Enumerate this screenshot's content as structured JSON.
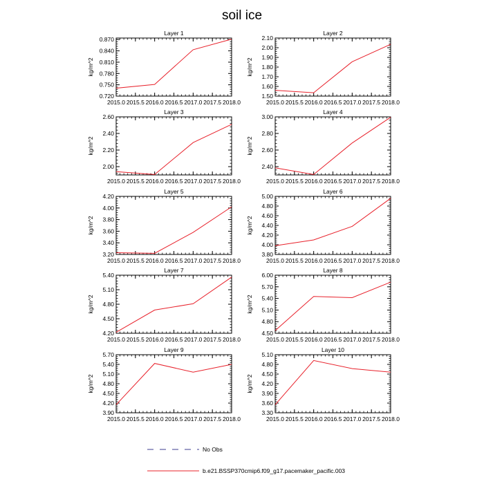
{
  "figure": {
    "title": "soil ice",
    "legend": [
      {
        "label": "No Obs",
        "style": "dashed",
        "color": "#3b3b8f"
      },
      {
        "label": "b.e21.BSSP370cmip6.f09_g17.pacemaker_pacific.003",
        "style": "solid",
        "color": "#e8202a"
      }
    ]
  },
  "chart_data": [
    {
      "type": "line",
      "title": "Layer 1",
      "ylabel": "kg/m^2",
      "x": [
        2015,
        2016,
        2017,
        2018
      ],
      "series": [
        {
          "name": "b.e21.BSSP370cmip6.f09_g17.pacemaker_pacific.003",
          "values": [
            0.741,
            0.751,
            0.843,
            0.871
          ]
        }
      ],
      "xlim": [
        2015,
        2018
      ],
      "xticks": [
        "2015.0",
        "2015.5",
        "2016.0",
        "2016.5",
        "2017.0",
        "2017.5",
        "2018.0"
      ],
      "ylim": [
        0.72,
        0.874
      ],
      "yticks": [
        "0.720",
        "0.750",
        "0.780",
        "0.810",
        "0.840",
        "0.870"
      ],
      "grid": false
    },
    {
      "type": "line",
      "title": "Layer 2",
      "ylabel": "kg/m^2",
      "x": [
        2015,
        2016,
        2017,
        2018
      ],
      "series": [
        {
          "name": "b.e21.BSSP370cmip6.f09_g17.pacemaker_pacific.003",
          "values": [
            1.56,
            1.535,
            1.855,
            2.035
          ]
        }
      ],
      "xlim": [
        2015,
        2018
      ],
      "xticks": [
        "2015.0",
        "2015.5",
        "2016.0",
        "2016.5",
        "2017.0",
        "2017.5",
        "2018.0"
      ],
      "ylim": [
        1.5,
        2.1
      ],
      "yticks": [
        "1.50",
        "1.60",
        "1.70",
        "1.80",
        "1.90",
        "2.00",
        "2.10"
      ],
      "grid": false
    },
    {
      "type": "line",
      "title": "Layer 3",
      "ylabel": "kg/m^2",
      "x": [
        2015,
        2016,
        2017,
        2018
      ],
      "series": [
        {
          "name": "b.e21.BSSP370cmip6.f09_g17.pacemaker_pacific.003",
          "values": [
            1.94,
            1.905,
            2.29,
            2.51
          ]
        }
      ],
      "xlim": [
        2015,
        2018
      ],
      "xticks": [
        "2015.0",
        "2015.5",
        "2016.0",
        "2016.5",
        "2017.0",
        "2017.5",
        "2018.0"
      ],
      "ylim": [
        1.9,
        2.6
      ],
      "yticks": [
        "2.00",
        "2.20",
        "2.40",
        "2.60"
      ],
      "grid": false
    },
    {
      "type": "line",
      "title": "Layer 4",
      "ylabel": "kg/m^2",
      "x": [
        2015,
        2016,
        2017,
        2018
      ],
      "series": [
        {
          "name": "b.e21.BSSP370cmip6.f09_g17.pacemaker_pacific.003",
          "values": [
            2.385,
            2.305,
            2.685,
            2.995
          ]
        }
      ],
      "xlim": [
        2015,
        2018
      ],
      "xticks": [
        "2015.0",
        "2015.5",
        "2016.0",
        "2016.5",
        "2017.0",
        "2017.5",
        "2018.0"
      ],
      "ylim": [
        2.3,
        3.0
      ],
      "yticks": [
        "2.40",
        "2.60",
        "2.80",
        "3.00"
      ],
      "grid": false
    },
    {
      "type": "line",
      "title": "Layer 5",
      "ylabel": "kg/m^2",
      "x": [
        2015,
        2016,
        2017,
        2018
      ],
      "series": [
        {
          "name": "b.e21.BSSP370cmip6.f09_g17.pacemaker_pacific.003",
          "values": [
            3.23,
            3.22,
            3.58,
            4.02
          ]
        }
      ],
      "xlim": [
        2015,
        2018
      ],
      "xticks": [
        "2015.0",
        "2015.5",
        "2016.0",
        "2016.5",
        "2017.0",
        "2017.5",
        "2018.0"
      ],
      "ylim": [
        3.2,
        4.2
      ],
      "yticks": [
        "3.20",
        "3.40",
        "3.60",
        "3.80",
        "4.00",
        "4.20"
      ],
      "grid": false
    },
    {
      "type": "line",
      "title": "Layer 6",
      "ylabel": "kg/m^2",
      "x": [
        2015,
        2016,
        2017,
        2018
      ],
      "series": [
        {
          "name": "b.e21.BSSP370cmip6.f09_g17.pacemaker_pacific.003",
          "values": [
            3.98,
            4.1,
            4.38,
            4.96
          ]
        }
      ],
      "xlim": [
        2015,
        2018
      ],
      "xticks": [
        "2015.0",
        "2015.5",
        "2016.0",
        "2016.5",
        "2017.0",
        "2017.5",
        "2018.0"
      ],
      "ylim": [
        3.8,
        5.0
      ],
      "yticks": [
        "3.80",
        "4.00",
        "4.20",
        "4.40",
        "4.60",
        "4.80",
        "5.00"
      ],
      "grid": false
    },
    {
      "type": "line",
      "title": "Layer 7",
      "ylabel": "kg/m^2",
      "x": [
        2015,
        2016,
        2017,
        2018
      ],
      "series": [
        {
          "name": "b.e21.BSSP370cmip6.f09_g17.pacemaker_pacific.003",
          "values": [
            4.22,
            4.68,
            4.81,
            5.36
          ]
        }
      ],
      "xlim": [
        2015,
        2018
      ],
      "xticks": [
        "2015.0",
        "2015.5",
        "2016.0",
        "2016.5",
        "2017.0",
        "2017.5",
        "2018.0"
      ],
      "ylim": [
        4.2,
        5.4
      ],
      "yticks": [
        "4.20",
        "4.50",
        "4.80",
        "5.10",
        "5.40"
      ],
      "grid": false
    },
    {
      "type": "line",
      "title": "Layer 8",
      "ylabel": "kg/m^2",
      "x": [
        2015,
        2016,
        2017,
        2018
      ],
      "series": [
        {
          "name": "b.e21.BSSP370cmip6.f09_g17.pacemaker_pacific.003",
          "values": [
            4.57,
            5.45,
            5.42,
            5.82
          ]
        }
      ],
      "xlim": [
        2015,
        2018
      ],
      "xticks": [
        "2015.0",
        "2015.5",
        "2016.0",
        "2016.5",
        "2017.0",
        "2017.5",
        "2018.0"
      ],
      "ylim": [
        4.5,
        6.0
      ],
      "yticks": [
        "4.50",
        "4.80",
        "5.10",
        "5.40",
        "5.70",
        "6.00"
      ],
      "grid": false
    },
    {
      "type": "line",
      "title": "Layer 9",
      "ylabel": "kg/m^2",
      "x": [
        2015,
        2016,
        2017,
        2018
      ],
      "series": [
        {
          "name": "b.e21.BSSP370cmip6.f09_g17.pacemaker_pacific.003",
          "values": [
            4.15,
            5.43,
            5.16,
            5.4
          ]
        }
      ],
      "xlim": [
        2015,
        2018
      ],
      "xticks": [
        "2015.0",
        "2015.5",
        "2016.0",
        "2016.5",
        "2017.0",
        "2017.5",
        "2018.0"
      ],
      "ylim": [
        3.9,
        5.7
      ],
      "yticks": [
        "3.90",
        "4.20",
        "4.50",
        "4.80",
        "5.10",
        "5.40",
        "5.70"
      ],
      "grid": false
    },
    {
      "type": "line",
      "title": "Layer 10",
      "ylabel": "kg/m^2",
      "x": [
        2015,
        2016,
        2017,
        2018
      ],
      "series": [
        {
          "name": "b.e21.BSSP370cmip6.f09_g17.pacemaker_pacific.003",
          "values": [
            3.55,
            4.92,
            4.67,
            4.56
          ]
        }
      ],
      "xlim": [
        2015,
        2018
      ],
      "xticks": [
        "2015.0",
        "2015.5",
        "2016.0",
        "2016.5",
        "2017.0",
        "2017.5",
        "2018.0"
      ],
      "ylim": [
        3.3,
        5.1
      ],
      "yticks": [
        "3.30",
        "3.60",
        "3.90",
        "4.20",
        "4.50",
        "4.80",
        "5.10"
      ],
      "grid": false
    }
  ]
}
